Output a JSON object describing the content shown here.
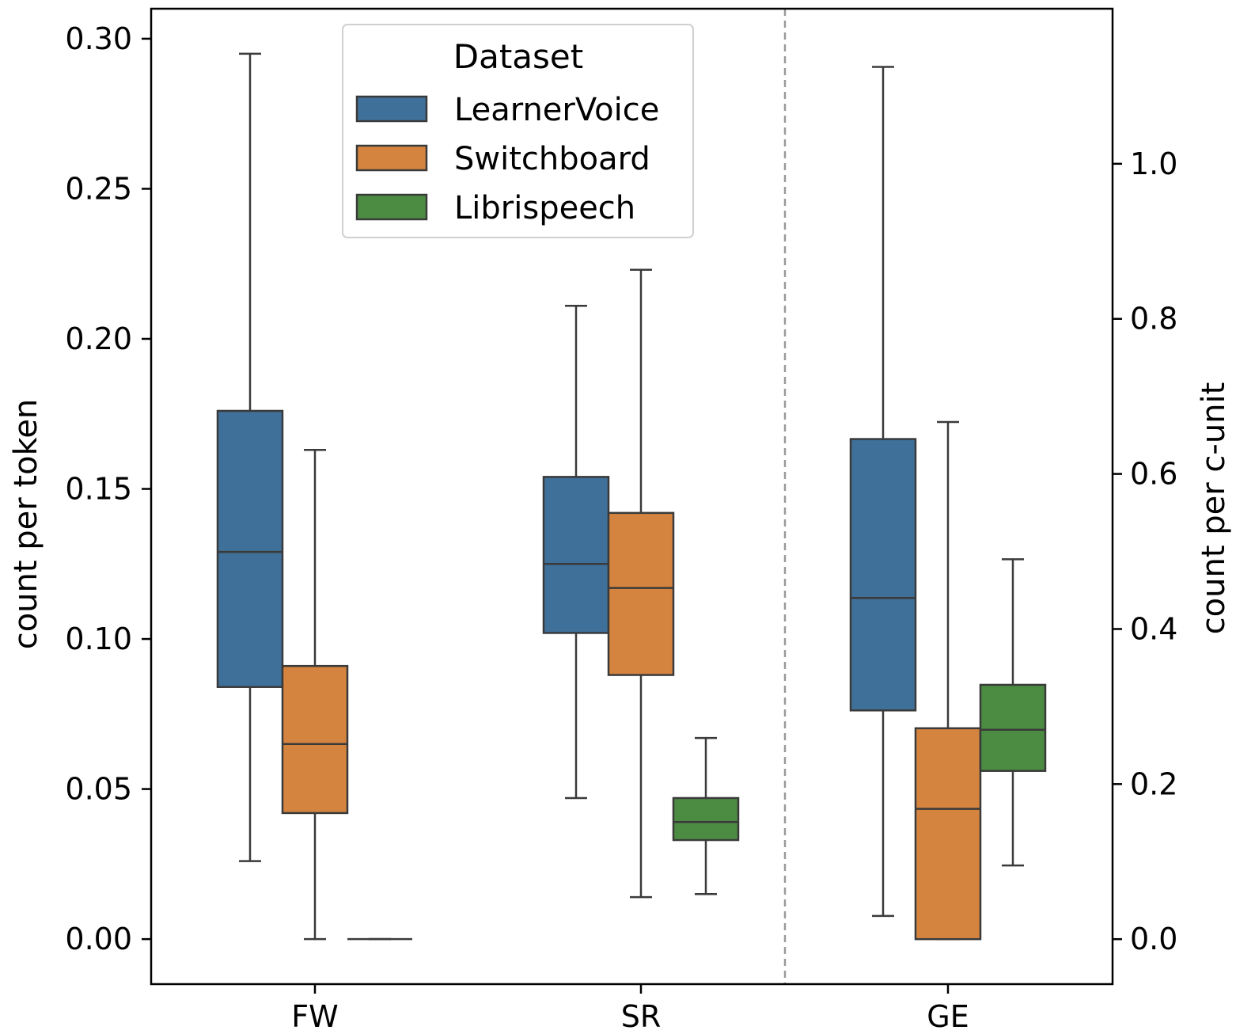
{
  "chart_data": {
    "type": "box",
    "categories": [
      "FW",
      "SR",
      "GE"
    ],
    "left_axis": {
      "label": "count per token",
      "range": [
        -0.015,
        0.31
      ],
      "ticks": [
        0.0,
        0.05,
        0.1,
        0.15,
        0.2,
        0.25,
        0.3
      ],
      "tick_labels": [
        "0.00",
        "0.05",
        "0.10",
        "0.15",
        "0.20",
        "0.25",
        "0.30"
      ],
      "applies_to": [
        "FW",
        "SR"
      ]
    },
    "right_axis": {
      "label": "count per c-unit",
      "range": [
        -0.058,
        1.2
      ],
      "ticks": [
        0.0,
        0.2,
        0.4,
        0.6,
        0.8,
        1.0
      ],
      "tick_labels": [
        "0.0",
        "0.2",
        "0.4",
        "0.6",
        "0.8",
        "1.0"
      ],
      "applies_to": [
        "GE"
      ]
    },
    "legend": {
      "title": "Dataset",
      "position": "top-center",
      "entries": [
        "LearnerVoice",
        "Switchboard",
        "Librispeech"
      ]
    },
    "colors": {
      "LearnerVoice": "#3f7099",
      "Switchboard": "#d5843f",
      "Librispeech": "#4c8c42",
      "line": "#3a3a3a",
      "separator": "#999999"
    },
    "separator": "dashed vertical line between SR and GE",
    "series": [
      {
        "name": "LearnerVoice",
        "boxes": [
          {
            "category": "FW",
            "axis": "left",
            "whisker_low": 0.026,
            "q1": 0.084,
            "median": 0.129,
            "q3": 0.176,
            "whisker_high": 0.295
          },
          {
            "category": "SR",
            "axis": "left",
            "whisker_low": 0.047,
            "q1": 0.102,
            "median": 0.125,
            "q3": 0.154,
            "whisker_high": 0.211
          },
          {
            "category": "GE",
            "axis": "right",
            "whisker_low": 0.03,
            "q1": 0.295,
            "median": 0.44,
            "q3": 0.645,
            "whisker_high": 1.125
          }
        ]
      },
      {
        "name": "Switchboard",
        "boxes": [
          {
            "category": "FW",
            "axis": "left",
            "whisker_low": 0.0,
            "q1": 0.042,
            "median": 0.065,
            "q3": 0.091,
            "whisker_high": 0.163
          },
          {
            "category": "SR",
            "axis": "left",
            "whisker_low": 0.014,
            "q1": 0.088,
            "median": 0.117,
            "q3": 0.142,
            "whisker_high": 0.223
          },
          {
            "category": "GE",
            "axis": "right",
            "whisker_low": 0.0,
            "q1": 0.0,
            "median": 0.168,
            "q3": 0.272,
            "whisker_high": 0.667
          }
        ]
      },
      {
        "name": "Librispeech",
        "boxes": [
          {
            "category": "FW",
            "axis": "left",
            "whisker_low": 0.0,
            "q1": 0.0,
            "median": 0.0,
            "q3": 0.0,
            "whisker_high": 0.0
          },
          {
            "category": "SR",
            "axis": "left",
            "whisker_low": 0.015,
            "q1": 0.033,
            "median": 0.039,
            "q3": 0.047,
            "whisker_high": 0.067
          },
          {
            "category": "GE",
            "axis": "right",
            "whisker_low": 0.095,
            "q1": 0.217,
            "median": 0.27,
            "q3": 0.328,
            "whisker_high": 0.49
          }
        ]
      }
    ]
  }
}
